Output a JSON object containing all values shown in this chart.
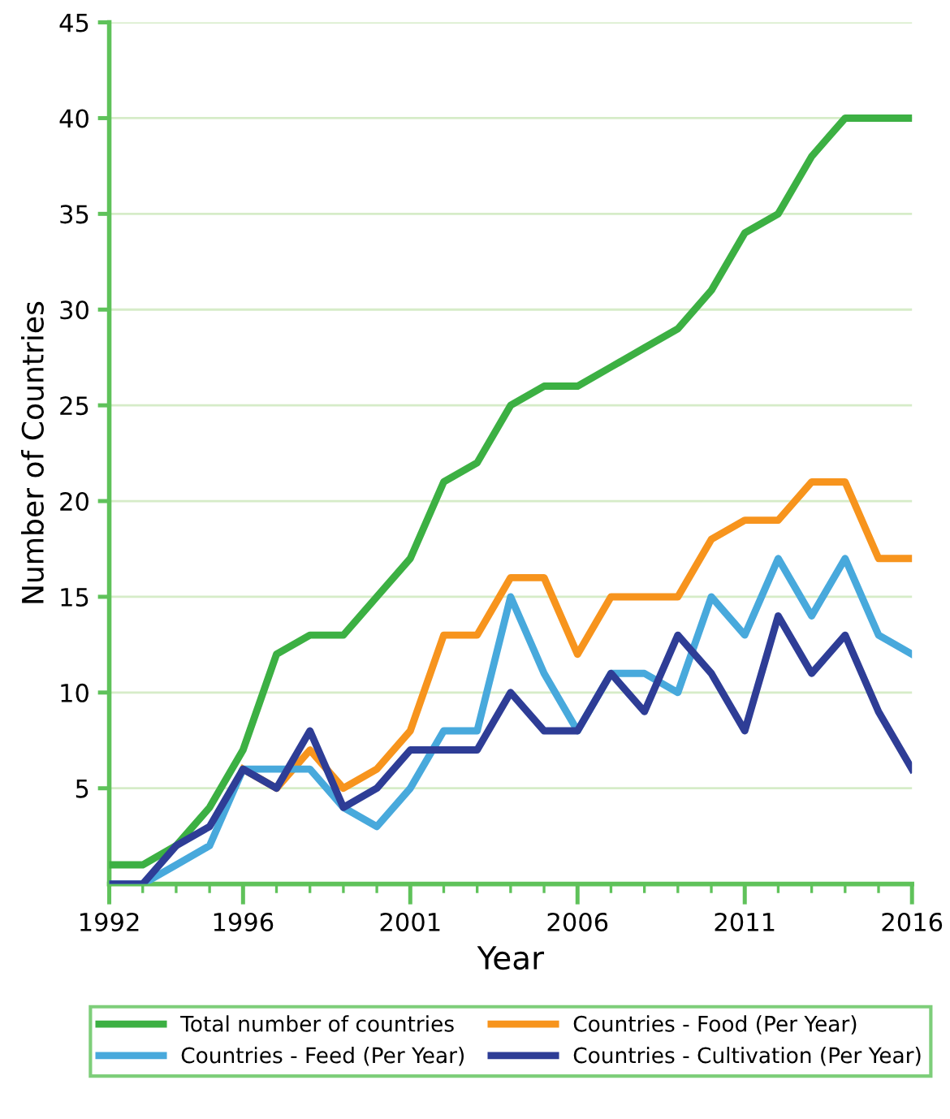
{
  "chart_data": {
    "type": "line",
    "xlabel": "Year",
    "ylabel": "Number of Countries",
    "x": [
      1992,
      1993,
      1994,
      1995,
      1996,
      1997,
      1998,
      1999,
      2000,
      2001,
      2002,
      2003,
      2004,
      2005,
      2006,
      2007,
      2008,
      2009,
      2010,
      2011,
      2012,
      2013,
      2014,
      2015,
      2016
    ],
    "series": [
      {
        "name": "Total number of countries",
        "color": "#3cb043",
        "values": [
          1,
          1,
          2,
          4,
          7,
          12,
          13,
          13,
          15,
          17,
          21,
          22,
          25,
          26,
          26,
          27,
          28,
          29,
          31,
          34,
          35,
          38,
          40,
          40,
          40
        ]
      },
      {
        "name": "Countries - Food (Per Year)",
        "color": "#f7941d",
        "values": [
          null,
          null,
          null,
          null,
          6,
          5,
          7,
          5,
          6,
          8,
          13,
          13,
          16,
          16,
          12,
          15,
          15,
          15,
          18,
          19,
          19,
          21,
          21,
          17,
          17
        ]
      },
      {
        "name": "Countries - Feed (Per Year)",
        "color": "#48a9dc",
        "values": [
          0,
          0,
          1,
          2,
          6,
          6,
          6,
          4,
          3,
          5,
          8,
          8,
          15,
          11,
          8,
          11,
          11,
          10,
          15,
          13,
          17,
          14,
          17,
          13,
          12
        ]
      },
      {
        "name": "Countries - Cultivation (Per Year)",
        "color": "#2e3d96",
        "values": [
          0,
          0,
          2,
          3,
          6,
          5,
          8,
          4,
          5,
          7,
          7,
          7,
          10,
          8,
          8,
          11,
          9,
          13,
          11,
          8,
          14,
          11,
          13,
          9,
          6
        ]
      }
    ],
    "xlim": [
      1992,
      2016
    ],
    "xticks": [
      1992,
      {
        "value": 1993,
        "label": null
      },
      {
        "value": 1994,
        "label": null
      },
      {
        "value": 1995,
        "label": null
      },
      1996,
      {
        "value": 1997,
        "label": null
      },
      {
        "value": 1998,
        "label": null
      },
      {
        "value": 1999,
        "label": null
      },
      {
        "value": 2000,
        "label": null
      },
      2001,
      {
        "value": 2002,
        "label": null
      },
      {
        "value": 2003,
        "label": null
      },
      {
        "value": 2004,
        "label": null
      },
      {
        "value": 2005,
        "label": null
      },
      2006,
      {
        "value": 2007,
        "label": null
      },
      {
        "value": 2008,
        "label": null
      },
      {
        "value": 2009,
        "label": null
      },
      {
        "value": 2010,
        "label": null
      },
      2011,
      {
        "value": 2012,
        "label": null
      },
      {
        "value": 2013,
        "label": null
      },
      {
        "value": 2014,
        "label": null
      },
      {
        "value": 2015,
        "label": null
      },
      2016
    ],
    "ylim": [
      0,
      45
    ],
    "yticks": [
      5,
      10,
      15,
      20,
      25,
      30,
      35,
      40,
      45
    ],
    "grid": "y",
    "legend": "bottom",
    "marker": "none",
    "line_style": "solid"
  }
}
